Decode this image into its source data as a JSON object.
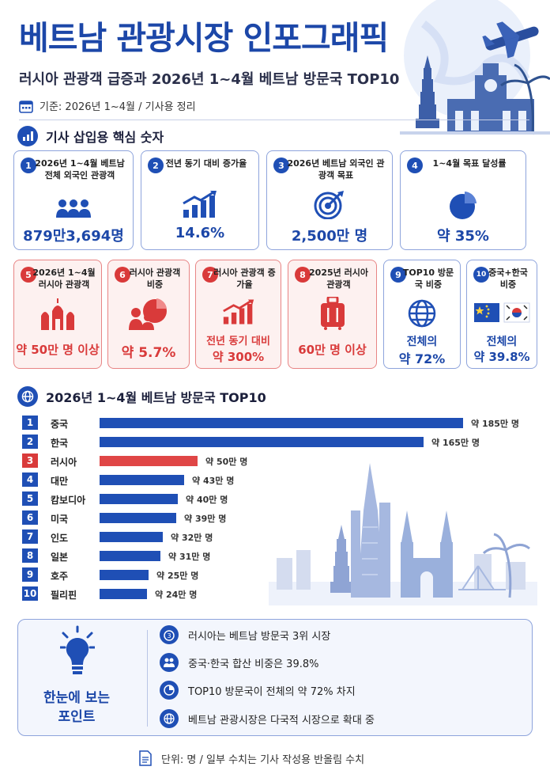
{
  "header": {
    "title": "베트남 관광시장 인포그래픽",
    "subtitle": "러시아 관광객 급증과 2026년 1~4월 베트남 방문국 TOP10",
    "basis": "기준: 2026년 1~4월 / 기사용 정리"
  },
  "key_section": {
    "title": "기사 삽입용 핵심 숫자"
  },
  "cards": [
    {
      "no": "1",
      "label": "2026년 1~4월 베트남 전체 외국인 관광객",
      "value": "879만3,694명",
      "icon": "people-icon"
    },
    {
      "no": "2",
      "label": "전년 동기 대비 증가율",
      "value": "14.6%",
      "icon": "growth-chart-icon"
    },
    {
      "no": "3",
      "label": "2026년 베트남 외국인 관광객 목표",
      "value": "2,500만 명",
      "icon": "target-icon"
    },
    {
      "no": "4",
      "label": "1~4월 목표 달성률",
      "value": "약 35%",
      "icon": "pie-icon"
    },
    {
      "no": "5",
      "label": "2026년 1~4월 러시아 관광객",
      "value": "약 50만 명 이상",
      "icon": "kremlin-icon"
    },
    {
      "no": "6",
      "label": "러시아 관광객 비중",
      "value": "약 5.7%",
      "icon": "group-pie-icon"
    },
    {
      "no": "7",
      "label": "러시아 관광객 증가율",
      "value_line1": "전년 동기 대비",
      "value_line2": "약 300%",
      "icon": "growth-chart-icon"
    },
    {
      "no": "8",
      "label": "2025년 러시아 관광객",
      "value": "60만 명 이상",
      "icon": "suitcase-icon"
    },
    {
      "no": "9",
      "label": "TOP10 방문국 비중",
      "value_line1": "전체의",
      "value_line2": "약 72%",
      "icon": "globe-icon"
    },
    {
      "no": "10",
      "label": "중국+한국 비중",
      "value_line1": "전체의",
      "value_line2": "약 39.8%",
      "icon": "flags-icon"
    }
  ],
  "colors": {
    "primary": "#1f4fb5",
    "accent_red": "#e04646",
    "title_blue": "#1c47a8"
  },
  "chart_data": {
    "type": "bar",
    "orientation": "horizontal",
    "title": "2026년 1~4월 베트남 방문국 TOP10",
    "categories": [
      "중국",
      "한국",
      "러시아",
      "대만",
      "캄보디아",
      "미국",
      "인도",
      "일본",
      "호주",
      "필리핀"
    ],
    "ranks": [
      "1",
      "2",
      "3",
      "4",
      "5",
      "6",
      "7",
      "8",
      "9",
      "10"
    ],
    "values": [
      185,
      165,
      50,
      43,
      40,
      39,
      32,
      31,
      25,
      24
    ],
    "value_labels": [
      "약 185만 명",
      "약 165만 명",
      "약 50만 명",
      "약 43만 명",
      "약 40만 명",
      "약 39만 명",
      "약 32만 명",
      "약 31만 명",
      "약 25만 명",
      "약 24만 명"
    ],
    "highlight": "러시아",
    "unit": "만 명",
    "xlim": [
      0,
      185
    ]
  },
  "points": {
    "title_line1": "한눈에 보는",
    "title_line2": "포인트",
    "items": [
      {
        "text": "러시아는 베트남 방문국 3위 시장",
        "icon": "medal-icon"
      },
      {
        "text": "중국·한국 합산 비중은 39.8%",
        "icon": "group-icon"
      },
      {
        "text": "TOP10 방문국이 전체의 약 72% 차지",
        "icon": "pie-icon"
      },
      {
        "text": "베트남 관광시장은 다국적 시장으로 확대 중",
        "icon": "globe-icon"
      }
    ]
  },
  "footer": {
    "text": "단위: 명 / 일부 수치는 기사 작성용 반올림 수치"
  }
}
